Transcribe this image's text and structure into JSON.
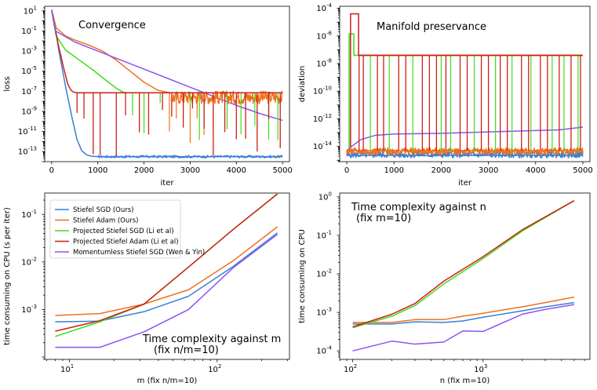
{
  "colors": {
    "stiefel_sgd": "#3a7fd6",
    "stiefel_adam": "#f0701c",
    "proj_sgd": "#3fdc18",
    "proj_adam": "#cc1f16",
    "momentumless": "#8a55f0"
  },
  "chart_data": [
    {
      "id": "convergence",
      "type": "line",
      "annotation": "Convergence",
      "xlabel": "iter",
      "ylabel": "loss",
      "yscale": "log",
      "xlim": [
        -150,
        5150
      ],
      "ylim_exp": [
        -14,
        1.45
      ],
      "xticks": [
        "0",
        "1000",
        "2000",
        "3000",
        "4000",
        "5000"
      ],
      "xtick_values": [
        0,
        1000,
        2000,
        3000,
        4000,
        5000
      ],
      "ytick_exps": [
        1,
        -1,
        -3,
        -5,
        -7,
        -9,
        -11,
        -13
      ],
      "series": [
        {
          "name": "Stiefel SGD (Ours)",
          "color_key": "stiefel_sgd",
          "x": [
            0,
            50,
            150,
            300,
            450,
            550,
            650,
            750,
            850,
            1000,
            5000
          ],
          "log10y": [
            1.1,
            0.2,
            -2.8,
            -6.5,
            -9.8,
            -11.8,
            -12.9,
            -13.3,
            -13.45,
            -13.5,
            -13.5
          ]
        },
        {
          "name": "Stiefel Adam (Ours)",
          "color_key": "stiefel_adam",
          "x": [
            0,
            100,
            300,
            500,
            800,
            1100,
            1400,
            1700,
            2000,
            2300,
            2500,
            2600,
            5000
          ],
          "log10y": [
            1.1,
            -0.7,
            -1.5,
            -1.9,
            -2.4,
            -3.0,
            -3.9,
            -5.0,
            -6.1,
            -6.9,
            -7.1,
            -7.15,
            -7.15
          ]
        },
        {
          "name": "Projected Stiefel SGD (Li et al)",
          "color_key": "proj_sgd",
          "x": [
            0,
            100,
            300,
            600,
            900,
            1200,
            1400,
            1550,
            1650,
            5000
          ],
          "log10y": [
            1.1,
            -1.5,
            -2.9,
            -3.9,
            -4.9,
            -6.0,
            -6.7,
            -7.1,
            -7.15,
            -7.15
          ]
        },
        {
          "name": "Projected Stiefel Adam (Li et al)",
          "color_key": "proj_adam",
          "x": [
            0,
            60,
            150,
            250,
            350,
            420,
            480,
            550,
            5000
          ],
          "log10y": [
            1.1,
            -0.5,
            -2.5,
            -4.5,
            -6.3,
            -6.9,
            -7.1,
            -7.15,
            -7.15
          ]
        },
        {
          "name": "Momentumless Stiefel SGD (Wen & Yin)",
          "color_key": "momentumless",
          "x": [
            0,
            80,
            500,
            1000,
            1500,
            2000,
            2500,
            3000,
            3500,
            4000,
            4500,
            5000
          ],
          "log10y": [
            1.1,
            -1.0,
            -2.1,
            -3.0,
            -3.9,
            -4.8,
            -5.7,
            -6.6,
            -7.5,
            -8.4,
            -9.2,
            -9.9
          ]
        }
      ]
    },
    {
      "id": "manifold",
      "type": "line",
      "annotation": "Manifold preservance",
      "xlabel": "iter",
      "ylabel": "deviation",
      "yscale": "log",
      "xlim": [
        -150,
        5150
      ],
      "ylim_exp": [
        -15.1,
        -3.85
      ],
      "xticks": [
        "0",
        "1000",
        "2000",
        "3000",
        "4000",
        "5000"
      ],
      "xtick_values": [
        0,
        1000,
        2000,
        3000,
        4000,
        5000
      ],
      "ytick_exps": [
        -4,
        -6,
        -8,
        -10,
        -12,
        -14
      ],
      "series": [
        {
          "name": "Stiefel SGD (Ours)",
          "color_key": "stiefel_sgd",
          "x": [
            0,
            5000
          ],
          "log10y": [
            -14.65,
            -14.65
          ]
        },
        {
          "name": "Stiefel Adam (Ours)",
          "color_key": "stiefel_adam",
          "x": [
            0,
            5000
          ],
          "log10y": [
            -14.3,
            -14.3
          ]
        },
        {
          "name": "Projected Stiefel SGD (Li et al)",
          "color_key": "proj_sgd",
          "x": [
            0,
            50,
            50,
            150,
            150,
            5000
          ],
          "log10y": [
            -14.4,
            -14.4,
            -5.85,
            -5.85,
            -7.4,
            -7.4
          ]
        },
        {
          "name": "Projected Stiefel Adam (Li et al)",
          "color_key": "proj_adam",
          "x": [
            0,
            80,
            80,
            250,
            250,
            5000
          ],
          "log10y": [
            -14.3,
            -14.3,
            -4.4,
            -4.4,
            -7.4,
            -7.4
          ]
        },
        {
          "name": "Momentumless Stiefel SGD (Wen & Yin)",
          "color_key": "momentumless",
          "x": [
            0,
            100,
            300,
            600,
            1000,
            2000,
            3000,
            4000,
            4500,
            5000
          ],
          "log10y": [
            -14.3,
            -14.0,
            -13.5,
            -13.2,
            -13.1,
            -13.05,
            -12.95,
            -12.85,
            -12.8,
            -12.6
          ]
        }
      ]
    },
    {
      "id": "time_vs_m",
      "type": "line",
      "annotation": "Time complexity against m",
      "annotation2": "(fix n/m=10)",
      "xlabel": "m (fix n/m=10)",
      "ylabel": "time consuming on CPU (s per iter)",
      "xscale": "log",
      "yscale": "log",
      "xlim_exp": [
        0.832,
        2.49
      ],
      "ylim_exp": [
        -4.05,
        -0.55
      ],
      "xtick_exps": [
        1,
        2
      ],
      "ytick_exps": [
        -3,
        -2,
        -1
      ],
      "legend": "top-left",
      "series": [
        {
          "name": "Stiefel SGD (Ours)",
          "color_key": "stiefel_sgd",
          "x": [
            8,
            16,
            32,
            64,
            128,
            256
          ],
          "y": [
            0.00055,
            0.00057,
            0.0009,
            0.0019,
            0.008,
            0.041
          ]
        },
        {
          "name": "Stiefel Adam (Ours)",
          "color_key": "stiefel_adam",
          "x": [
            8,
            16,
            32,
            64,
            128,
            256
          ],
          "y": [
            0.00075,
            0.00082,
            0.0013,
            0.0026,
            0.0105,
            0.055
          ]
        },
        {
          "name": "Projected Stiefel SGD (Li et al)",
          "color_key": "proj_sgd",
          "x": [
            8,
            16,
            32,
            64,
            128,
            256
          ],
          "y": [
            0.00027,
            0.00055,
            0.0013,
            0.0078,
            0.048,
            0.27
          ]
        },
        {
          "name": "Projected Stiefel Adam (Li et al)",
          "color_key": "proj_adam",
          "x": [
            8,
            16,
            32,
            64,
            128,
            256
          ],
          "y": [
            0.00035,
            0.00058,
            0.0013,
            0.0078,
            0.048,
            0.27
          ]
        },
        {
          "name": "Momentumless Stiefel SGD (Wen & Yin)",
          "color_key": "momentumless",
          "x": [
            8,
            16,
            32,
            64,
            128,
            256
          ],
          "y": [
            0.00016,
            0.00016,
            0.00034,
            0.001,
            0.0075,
            0.038
          ]
        }
      ]
    },
    {
      "id": "time_vs_n",
      "type": "line",
      "annotation": "Time complexity against n",
      "annotation2": "(fix m=10)",
      "xlabel": "n (fix m=10)",
      "ylabel": "time consuming on CPU",
      "xscale": "log",
      "yscale": "log",
      "xlim_exp": [
        1.9,
        3.82
      ],
      "ylim_exp": [
        -4.22,
        0.1
      ],
      "xtick_exps": [
        2,
        3
      ],
      "ytick_exps": [
        0,
        -1,
        -2,
        -3,
        -4
      ],
      "series": [
        {
          "name": "Stiefel SGD (Ours)",
          "color_key": "stiefel_sgd",
          "x": [
            100,
            200,
            300,
            500,
            700,
            1000,
            2000,
            3000,
            5000
          ],
          "y": [
            0.0005,
            0.0005,
            0.00057,
            0.00055,
            0.0006,
            0.00075,
            0.0011,
            0.0014,
            0.0018
          ]
        },
        {
          "name": "Stiefel Adam (Ours)",
          "color_key": "stiefel_adam",
          "x": [
            100,
            200,
            300,
            500,
            700,
            1000,
            2000,
            3000,
            5000
          ],
          "y": [
            0.00055,
            0.00055,
            0.00065,
            0.00065,
            0.0008,
            0.00095,
            0.0014,
            0.0018,
            0.0025
          ]
        },
        {
          "name": "Projected Stiefel SGD (Li et al)",
          "color_key": "proj_sgd",
          "x": [
            100,
            200,
            300,
            500,
            1000,
            2000,
            5000
          ],
          "y": [
            0.0004,
            0.0008,
            0.0015,
            0.0055,
            0.025,
            0.13,
            0.8
          ]
        },
        {
          "name": "Projected Stiefel Adam (Li et al)",
          "color_key": "proj_adam",
          "x": [
            100,
            200,
            300,
            500,
            1000,
            2000,
            5000
          ],
          "y": [
            0.00042,
            0.0009,
            0.0017,
            0.0065,
            0.028,
            0.14,
            0.8
          ]
        },
        {
          "name": "Momentumless Stiefel SGD (Wen & Yin)",
          "color_key": "momentumless",
          "x": [
            100,
            200,
            300,
            500,
            700,
            1000,
            2000,
            3000,
            5000
          ],
          "y": [
            0.0001,
            0.00018,
            0.00015,
            0.00017,
            0.00033,
            0.00032,
            0.0009,
            0.0012,
            0.0016
          ]
        }
      ]
    }
  ]
}
